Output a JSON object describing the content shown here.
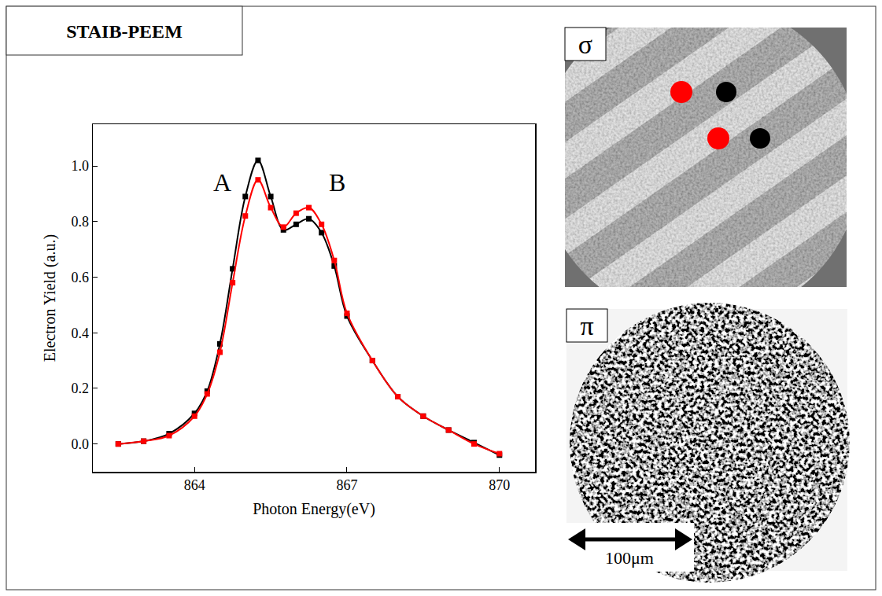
{
  "header": "STAIB-PEEM",
  "images": [
    {
      "label": "σ"
    },
    {
      "label": "π",
      "scale_bar": "100μm"
    }
  ],
  "chart_data": {
    "type": "line",
    "x_label": "Photon Energy(eV)",
    "y_label": "Electron Yield (a.u.)",
    "x": [
      862.5,
      863,
      863.5,
      864,
      864.25,
      864.5,
      864.75,
      865,
      865.25,
      865.5,
      865.75,
      866,
      866.25,
      866.5,
      866.75,
      867,
      867.5,
      868,
      868.5,
      869,
      869.5,
      870
    ],
    "series": [
      {
        "color": "#000000",
        "values": [
          0,
          0.01,
          0.037,
          0.11,
          0.19,
          0.36,
          0.63,
          0.89,
          1.02,
          0.89,
          0.77,
          0.79,
          0.81,
          0.76,
          0.64,
          0.46,
          0.3,
          0.17,
          0.1,
          0.05,
          0.005,
          -0.04
        ]
      },
      {
        "color": "#ff0000",
        "values": [
          0,
          0.01,
          0.03,
          0.1,
          0.18,
          0.33,
          0.58,
          0.82,
          0.95,
          0.85,
          0.78,
          0.83,
          0.85,
          0.79,
          0.66,
          0.47,
          0.3,
          0.17,
          0.1,
          0.05,
          0.0,
          -0.035
        ]
      }
    ],
    "marker": "square",
    "grid": false,
    "xlim": [
      862,
      870.7
    ],
    "ylim": [
      -0.1,
      1.15
    ],
    "xticks": [
      864,
      867,
      870
    ],
    "yticks": [
      {
        "value": 0,
        "label": "0.0"
      },
      {
        "value": 0.2,
        "label": "0.2"
      },
      {
        "value": 0.4,
        "label": "0.4"
      },
      {
        "value": 0.6,
        "label": "0.6"
      },
      {
        "value": 0.8,
        "label": "0.8"
      },
      {
        "value": 1.0,
        "label": "1.0"
      }
    ],
    "annotations": [
      {
        "text": "A",
        "x": 864.55,
        "y": 0.94
      },
      {
        "text": "B",
        "x": 866.8,
        "y": 0.94
      }
    ]
  }
}
